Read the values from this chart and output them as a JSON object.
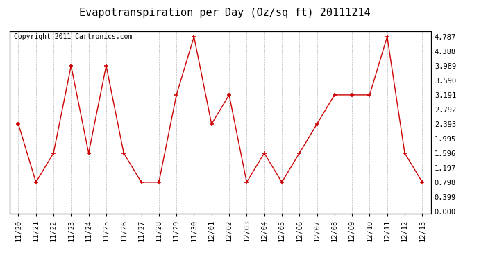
{
  "title": "Evapotranspiration per Day (Oz/sq ft) 20111214",
  "copyright": "Copyright 2011 Cartronics.com",
  "dates": [
    "11/20",
    "11/21",
    "11/22",
    "11/23",
    "11/24",
    "11/25",
    "11/26",
    "11/27",
    "11/28",
    "11/29",
    "11/30",
    "12/01",
    "12/02",
    "12/03",
    "12/04",
    "12/05",
    "12/06",
    "12/07",
    "12/08",
    "12/09",
    "12/10",
    "12/11",
    "12/12",
    "12/13"
  ],
  "values": [
    2.393,
    0.798,
    1.596,
    3.989,
    1.596,
    3.989,
    1.596,
    0.798,
    0.798,
    3.191,
    4.787,
    2.393,
    3.191,
    0.798,
    1.596,
    0.798,
    1.596,
    2.393,
    3.191,
    3.191,
    3.191,
    4.787,
    1.596,
    0.798
  ],
  "yticks": [
    0.0,
    0.399,
    0.798,
    1.197,
    1.596,
    1.995,
    2.393,
    2.792,
    3.191,
    3.59,
    3.989,
    4.388,
    4.787
  ],
  "ymin": 0.0,
  "ymax": 4.787,
  "line_color": "#cc0000",
  "marker_color": "#cc0000",
  "bg_color": "#ffffff",
  "grid_color": "#bbbbbb",
  "title_fontsize": 11,
  "copyright_fontsize": 7,
  "tick_fontsize": 7.5,
  "marker_size": 3,
  "linewidth": 1.0
}
